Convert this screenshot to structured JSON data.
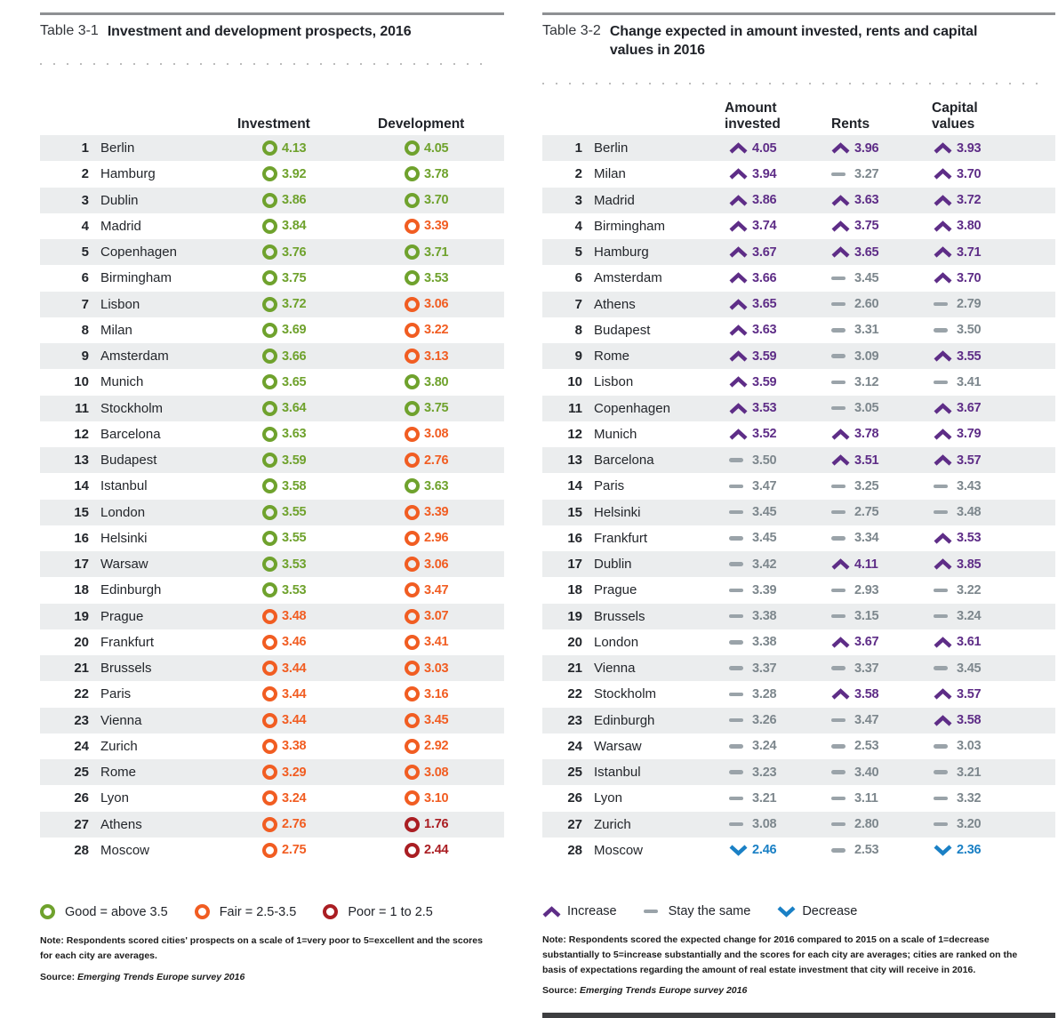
{
  "colors": {
    "good": "#6fa22d",
    "fair": "#f15d22",
    "poor": "#aa1e23",
    "increase": "#5e2d87",
    "same_icon": "#9aa3a9",
    "same_text": "#7d878d",
    "decrease": "#1a80c5"
  },
  "table1": {
    "label": "Table 3-1",
    "title": "Investment and development prospects, 2016",
    "col_investment": "Investment",
    "col_development": "Development",
    "rows": [
      {
        "rank": "1",
        "city": "Berlin",
        "inv": "4.13",
        "inv_r": "good",
        "dev": "4.05",
        "dev_r": "good"
      },
      {
        "rank": "2",
        "city": "Hamburg",
        "inv": "3.92",
        "inv_r": "good",
        "dev": "3.78",
        "dev_r": "good"
      },
      {
        "rank": "3",
        "city": "Dublin",
        "inv": "3.86",
        "inv_r": "good",
        "dev": "3.70",
        "dev_r": "good"
      },
      {
        "rank": "4",
        "city": "Madrid",
        "inv": "3.84",
        "inv_r": "good",
        "dev": "3.39",
        "dev_r": "fair"
      },
      {
        "rank": "5",
        "city": "Copenhagen",
        "inv": "3.76",
        "inv_r": "good",
        "dev": "3.71",
        "dev_r": "good"
      },
      {
        "rank": "6",
        "city": "Birmingham",
        "inv": "3.75",
        "inv_r": "good",
        "dev": "3.53",
        "dev_r": "good"
      },
      {
        "rank": "7",
        "city": "Lisbon",
        "inv": "3.72",
        "inv_r": "good",
        "dev": "3.06",
        "dev_r": "fair"
      },
      {
        "rank": "8",
        "city": "Milan",
        "inv": "3.69",
        "inv_r": "good",
        "dev": "3.22",
        "dev_r": "fair"
      },
      {
        "rank": "9",
        "city": "Amsterdam",
        "inv": "3.66",
        "inv_r": "good",
        "dev": "3.13",
        "dev_r": "fair"
      },
      {
        "rank": "10",
        "city": "Munich",
        "inv": "3.65",
        "inv_r": "good",
        "dev": "3.80",
        "dev_r": "good"
      },
      {
        "rank": "11",
        "city": "Stockholm",
        "inv": "3.64",
        "inv_r": "good",
        "dev": "3.75",
        "dev_r": "good"
      },
      {
        "rank": "12",
        "city": "Barcelona",
        "inv": "3.63",
        "inv_r": "good",
        "dev": "3.08",
        "dev_r": "fair"
      },
      {
        "rank": "13",
        "city": "Budapest",
        "inv": "3.59",
        "inv_r": "good",
        "dev": "2.76",
        "dev_r": "fair"
      },
      {
        "rank": "14",
        "city": "Istanbul",
        "inv": "3.58",
        "inv_r": "good",
        "dev": "3.63",
        "dev_r": "good"
      },
      {
        "rank": "15",
        "city": "London",
        "inv": "3.55",
        "inv_r": "good",
        "dev": "3.39",
        "dev_r": "fair"
      },
      {
        "rank": "16",
        "city": "Helsinki",
        "inv": "3.55",
        "inv_r": "good",
        "dev": "2.96",
        "dev_r": "fair"
      },
      {
        "rank": "17",
        "city": "Warsaw",
        "inv": "3.53",
        "inv_r": "good",
        "dev": "3.06",
        "dev_r": "fair"
      },
      {
        "rank": "18",
        "city": "Edinburgh",
        "inv": "3.53",
        "inv_r": "good",
        "dev": "3.47",
        "dev_r": "fair"
      },
      {
        "rank": "19",
        "city": "Prague",
        "inv": "3.48",
        "inv_r": "fair",
        "dev": "3.07",
        "dev_r": "fair"
      },
      {
        "rank": "20",
        "city": "Frankfurt",
        "inv": "3.46",
        "inv_r": "fair",
        "dev": "3.41",
        "dev_r": "fair"
      },
      {
        "rank": "21",
        "city": "Brussels",
        "inv": "3.44",
        "inv_r": "fair",
        "dev": "3.03",
        "dev_r": "fair"
      },
      {
        "rank": "22",
        "city": "Paris",
        "inv": "3.44",
        "inv_r": "fair",
        "dev": "3.16",
        "dev_r": "fair"
      },
      {
        "rank": "23",
        "city": "Vienna",
        "inv": "3.44",
        "inv_r": "fair",
        "dev": "3.45",
        "dev_r": "fair"
      },
      {
        "rank": "24",
        "city": "Zurich",
        "inv": "3.38",
        "inv_r": "fair",
        "dev": "2.92",
        "dev_r": "fair"
      },
      {
        "rank": "25",
        "city": "Rome",
        "inv": "3.29",
        "inv_r": "fair",
        "dev": "3.08",
        "dev_r": "fair"
      },
      {
        "rank": "26",
        "city": "Lyon",
        "inv": "3.24",
        "inv_r": "fair",
        "dev": "3.10",
        "dev_r": "fair"
      },
      {
        "rank": "27",
        "city": "Athens",
        "inv": "2.76",
        "inv_r": "fair",
        "dev": "1.76",
        "dev_r": "poor"
      },
      {
        "rank": "28",
        "city": "Moscow",
        "inv": "2.75",
        "inv_r": "fair",
        "dev": "2.44",
        "dev_r": "poor"
      }
    ],
    "legend": [
      {
        "label": "Good = above 3.5"
      },
      {
        "label": "Fair = 2.5-3.5"
      },
      {
        "label": "Poor = 1 to 2.5"
      }
    ],
    "note": "Note: Respondents scored cities' prospects on a scale of 1=very poor to 5=excellent and the scores for each city are averages.",
    "source_label": "Source:",
    "source": "Emerging Trends Europe survey 2016"
  },
  "table2": {
    "label": "Table 3-2",
    "title": "Change expected in amount invested, rents and capital values in 2016",
    "col_amount": "Amount\ninvested",
    "col_rents": "Rents",
    "col_capital": "Capital\nvalues",
    "rows": [
      {
        "rank": "1",
        "city": "Berlin",
        "amount": "4.05",
        "amount_t": "up",
        "rents": "3.96",
        "rents_t": "up",
        "capital": "3.93",
        "capital_t": "up"
      },
      {
        "rank": "2",
        "city": "Milan",
        "amount": "3.94",
        "amount_t": "up",
        "rents": "3.27",
        "rents_t": "same",
        "capital": "3.70",
        "capital_t": "up"
      },
      {
        "rank": "3",
        "city": "Madrid",
        "amount": "3.86",
        "amount_t": "up",
        "rents": "3.63",
        "rents_t": "up",
        "capital": "3.72",
        "capital_t": "up"
      },
      {
        "rank": "4",
        "city": "Birmingham",
        "amount": "3.74",
        "amount_t": "up",
        "rents": "3.75",
        "rents_t": "up",
        "capital": "3.80",
        "capital_t": "up"
      },
      {
        "rank": "5",
        "city": "Hamburg",
        "amount": "3.67",
        "amount_t": "up",
        "rents": "3.65",
        "rents_t": "up",
        "capital": "3.71",
        "capital_t": "up"
      },
      {
        "rank": "6",
        "city": "Amsterdam",
        "amount": "3.66",
        "amount_t": "up",
        "rents": "3.45",
        "rents_t": "same",
        "capital": "3.70",
        "capital_t": "up"
      },
      {
        "rank": "7",
        "city": "Athens",
        "amount": "3.65",
        "amount_t": "up",
        "rents": "2.60",
        "rents_t": "same",
        "capital": "2.79",
        "capital_t": "same"
      },
      {
        "rank": "8",
        "city": "Budapest",
        "amount": "3.63",
        "amount_t": "up",
        "rents": "3.31",
        "rents_t": "same",
        "capital": "3.50",
        "capital_t": "same"
      },
      {
        "rank": "9",
        "city": "Rome",
        "amount": "3.59",
        "amount_t": "up",
        "rents": "3.09",
        "rents_t": "same",
        "capital": "3.55",
        "capital_t": "up"
      },
      {
        "rank": "10",
        "city": "Lisbon",
        "amount": "3.59",
        "amount_t": "up",
        "rents": "3.12",
        "rents_t": "same",
        "capital": "3.41",
        "capital_t": "same"
      },
      {
        "rank": "11",
        "city": "Copenhagen",
        "amount": "3.53",
        "amount_t": "up",
        "rents": "3.05",
        "rents_t": "same",
        "capital": "3.67",
        "capital_t": "up"
      },
      {
        "rank": "12",
        "city": "Munich",
        "amount": "3.52",
        "amount_t": "up",
        "rents": "3.78",
        "rents_t": "up",
        "capital": "3.79",
        "capital_t": "up"
      },
      {
        "rank": "13",
        "city": "Barcelona",
        "amount": "3.50",
        "amount_t": "same",
        "rents": "3.51",
        "rents_t": "up",
        "capital": "3.57",
        "capital_t": "up"
      },
      {
        "rank": "14",
        "city": "Paris",
        "amount": "3.47",
        "amount_t": "same",
        "rents": "3.25",
        "rents_t": "same",
        "capital": "3.43",
        "capital_t": "same"
      },
      {
        "rank": "15",
        "city": "Helsinki",
        "amount": "3.45",
        "amount_t": "same",
        "rents": "2.75",
        "rents_t": "same",
        "capital": "3.48",
        "capital_t": "same"
      },
      {
        "rank": "16",
        "city": "Frankfurt",
        "amount": "3.45",
        "amount_t": "same",
        "rents": "3.34",
        "rents_t": "same",
        "capital": "3.53",
        "capital_t": "up"
      },
      {
        "rank": "17",
        "city": "Dublin",
        "amount": "3.42",
        "amount_t": "same",
        "rents": "4.11",
        "rents_t": "up",
        "capital": "3.85",
        "capital_t": "up"
      },
      {
        "rank": "18",
        "city": "Prague",
        "amount": "3.39",
        "amount_t": "same",
        "rents": "2.93",
        "rents_t": "same",
        "capital": "3.22",
        "capital_t": "same"
      },
      {
        "rank": "19",
        "city": "Brussels",
        "amount": "3.38",
        "amount_t": "same",
        "rents": "3.15",
        "rents_t": "same",
        "capital": "3.24",
        "capital_t": "same"
      },
      {
        "rank": "20",
        "city": "London",
        "amount": "3.38",
        "amount_t": "same",
        "rents": "3.67",
        "rents_t": "up",
        "capital": "3.61",
        "capital_t": "up"
      },
      {
        "rank": "21",
        "city": "Vienna",
        "amount": "3.37",
        "amount_t": "same",
        "rents": "3.37",
        "rents_t": "same",
        "capital": "3.45",
        "capital_t": "same"
      },
      {
        "rank": "22",
        "city": "Stockholm",
        "amount": "3.28",
        "amount_t": "same",
        "rents": "3.58",
        "rents_t": "up",
        "capital": "3.57",
        "capital_t": "up"
      },
      {
        "rank": "23",
        "city": "Edinburgh",
        "amount": "3.26",
        "amount_t": "same",
        "rents": "3.47",
        "rents_t": "same",
        "capital": "3.58",
        "capital_t": "up"
      },
      {
        "rank": "24",
        "city": "Warsaw",
        "amount": "3.24",
        "amount_t": "same",
        "rents": "2.53",
        "rents_t": "same",
        "capital": "3.03",
        "capital_t": "same"
      },
      {
        "rank": "25",
        "city": "Istanbul",
        "amount": "3.23",
        "amount_t": "same",
        "rents": "3.40",
        "rents_t": "same",
        "capital": "3.21",
        "capital_t": "same"
      },
      {
        "rank": "26",
        "city": "Lyon",
        "amount": "3.21",
        "amount_t": "same",
        "rents": "3.11",
        "rents_t": "same",
        "capital": "3.32",
        "capital_t": "same"
      },
      {
        "rank": "27",
        "city": "Zurich",
        "amount": "3.08",
        "amount_t": "same",
        "rents": "2.80",
        "rents_t": "same",
        "capital": "3.20",
        "capital_t": "same"
      },
      {
        "rank": "28",
        "city": "Moscow",
        "amount": "2.46",
        "amount_t": "down",
        "rents": "2.53",
        "rents_t": "same",
        "capital": "2.36",
        "capital_t": "down"
      }
    ],
    "legend": [
      {
        "label": "Increase",
        "trend": "up"
      },
      {
        "label": "Stay the same",
        "trend": "same"
      },
      {
        "label": "Decrease",
        "trend": "down"
      }
    ],
    "note": "Note: Respondents scored the expected change for 2016 compared to 2015 on a scale of 1=decrease substantially to 5=increase substantially and the scores for each city are averages; cities are ranked on the basis of expectations regarding the amount of real estate investment that city will receive in 2016.",
    "source_label": "Source:",
    "source": "Emerging Trends Europe survey 2016"
  }
}
